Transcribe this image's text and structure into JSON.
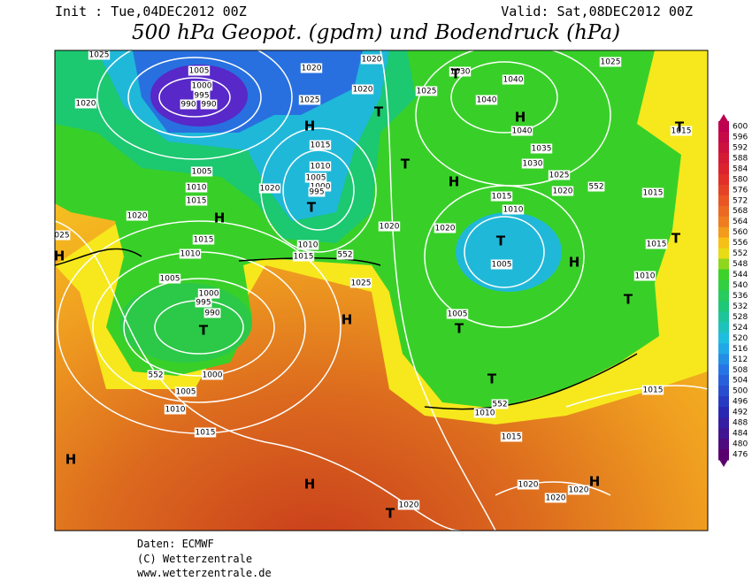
{
  "header": {
    "init": "Init : Tue,04DEC2012 00Z",
    "valid": "Valid: Sat,08DEC2012 00Z",
    "title": "500 hPa Geopot. (gpdm) und Bodendruck (hPa)"
  },
  "colorbar": {
    "labels": [
      600,
      596,
      592,
      588,
      584,
      580,
      576,
      572,
      568,
      564,
      560,
      556,
      552,
      548,
      544,
      540,
      536,
      532,
      528,
      524,
      520,
      516,
      512,
      508,
      504,
      500,
      496,
      492,
      488,
      484,
      480,
      476
    ]
  },
  "map": {
    "pressure_labels": [
      "1025",
      "1005",
      "1000",
      "995",
      "990",
      "990",
      "1020",
      "1020",
      "1020",
      "1020",
      "1025",
      "1015",
      "1010",
      "1005",
      "1000",
      "995",
      "1005",
      "1010",
      "1015",
      "1020",
      "1020",
      "1015",
      "1010",
      "025",
      "1010",
      "1015",
      "552",
      "1020",
      "1025",
      "1005",
      "1000",
      "995",
      "990",
      "552",
      "1000",
      "1005",
      "1010",
      "1015",
      "1030",
      "1040",
      "1025",
      "1040",
      "1040",
      "1035",
      "1030",
      "1025",
      "1020",
      "552",
      "1015",
      "1015",
      "1015",
      "1010",
      "1020",
      "1005",
      "1015",
      "1010",
      "1005",
      "1010",
      "552",
      "1015",
      "1015",
      "1020",
      "1020",
      "1020",
      "1020",
      "1025"
    ],
    "centers": [
      "T",
      "H",
      "T",
      "T",
      "H",
      "H",
      "T",
      "H",
      "H",
      "T",
      "H",
      "T",
      "T",
      "T",
      "H",
      "T",
      "T",
      "T",
      "H",
      "H",
      "H",
      "T"
    ]
  },
  "footer": [
    "Daten: ECMWF",
    "(C) Wetterzentrale",
    "www.wetterzentrale.de"
  ]
}
